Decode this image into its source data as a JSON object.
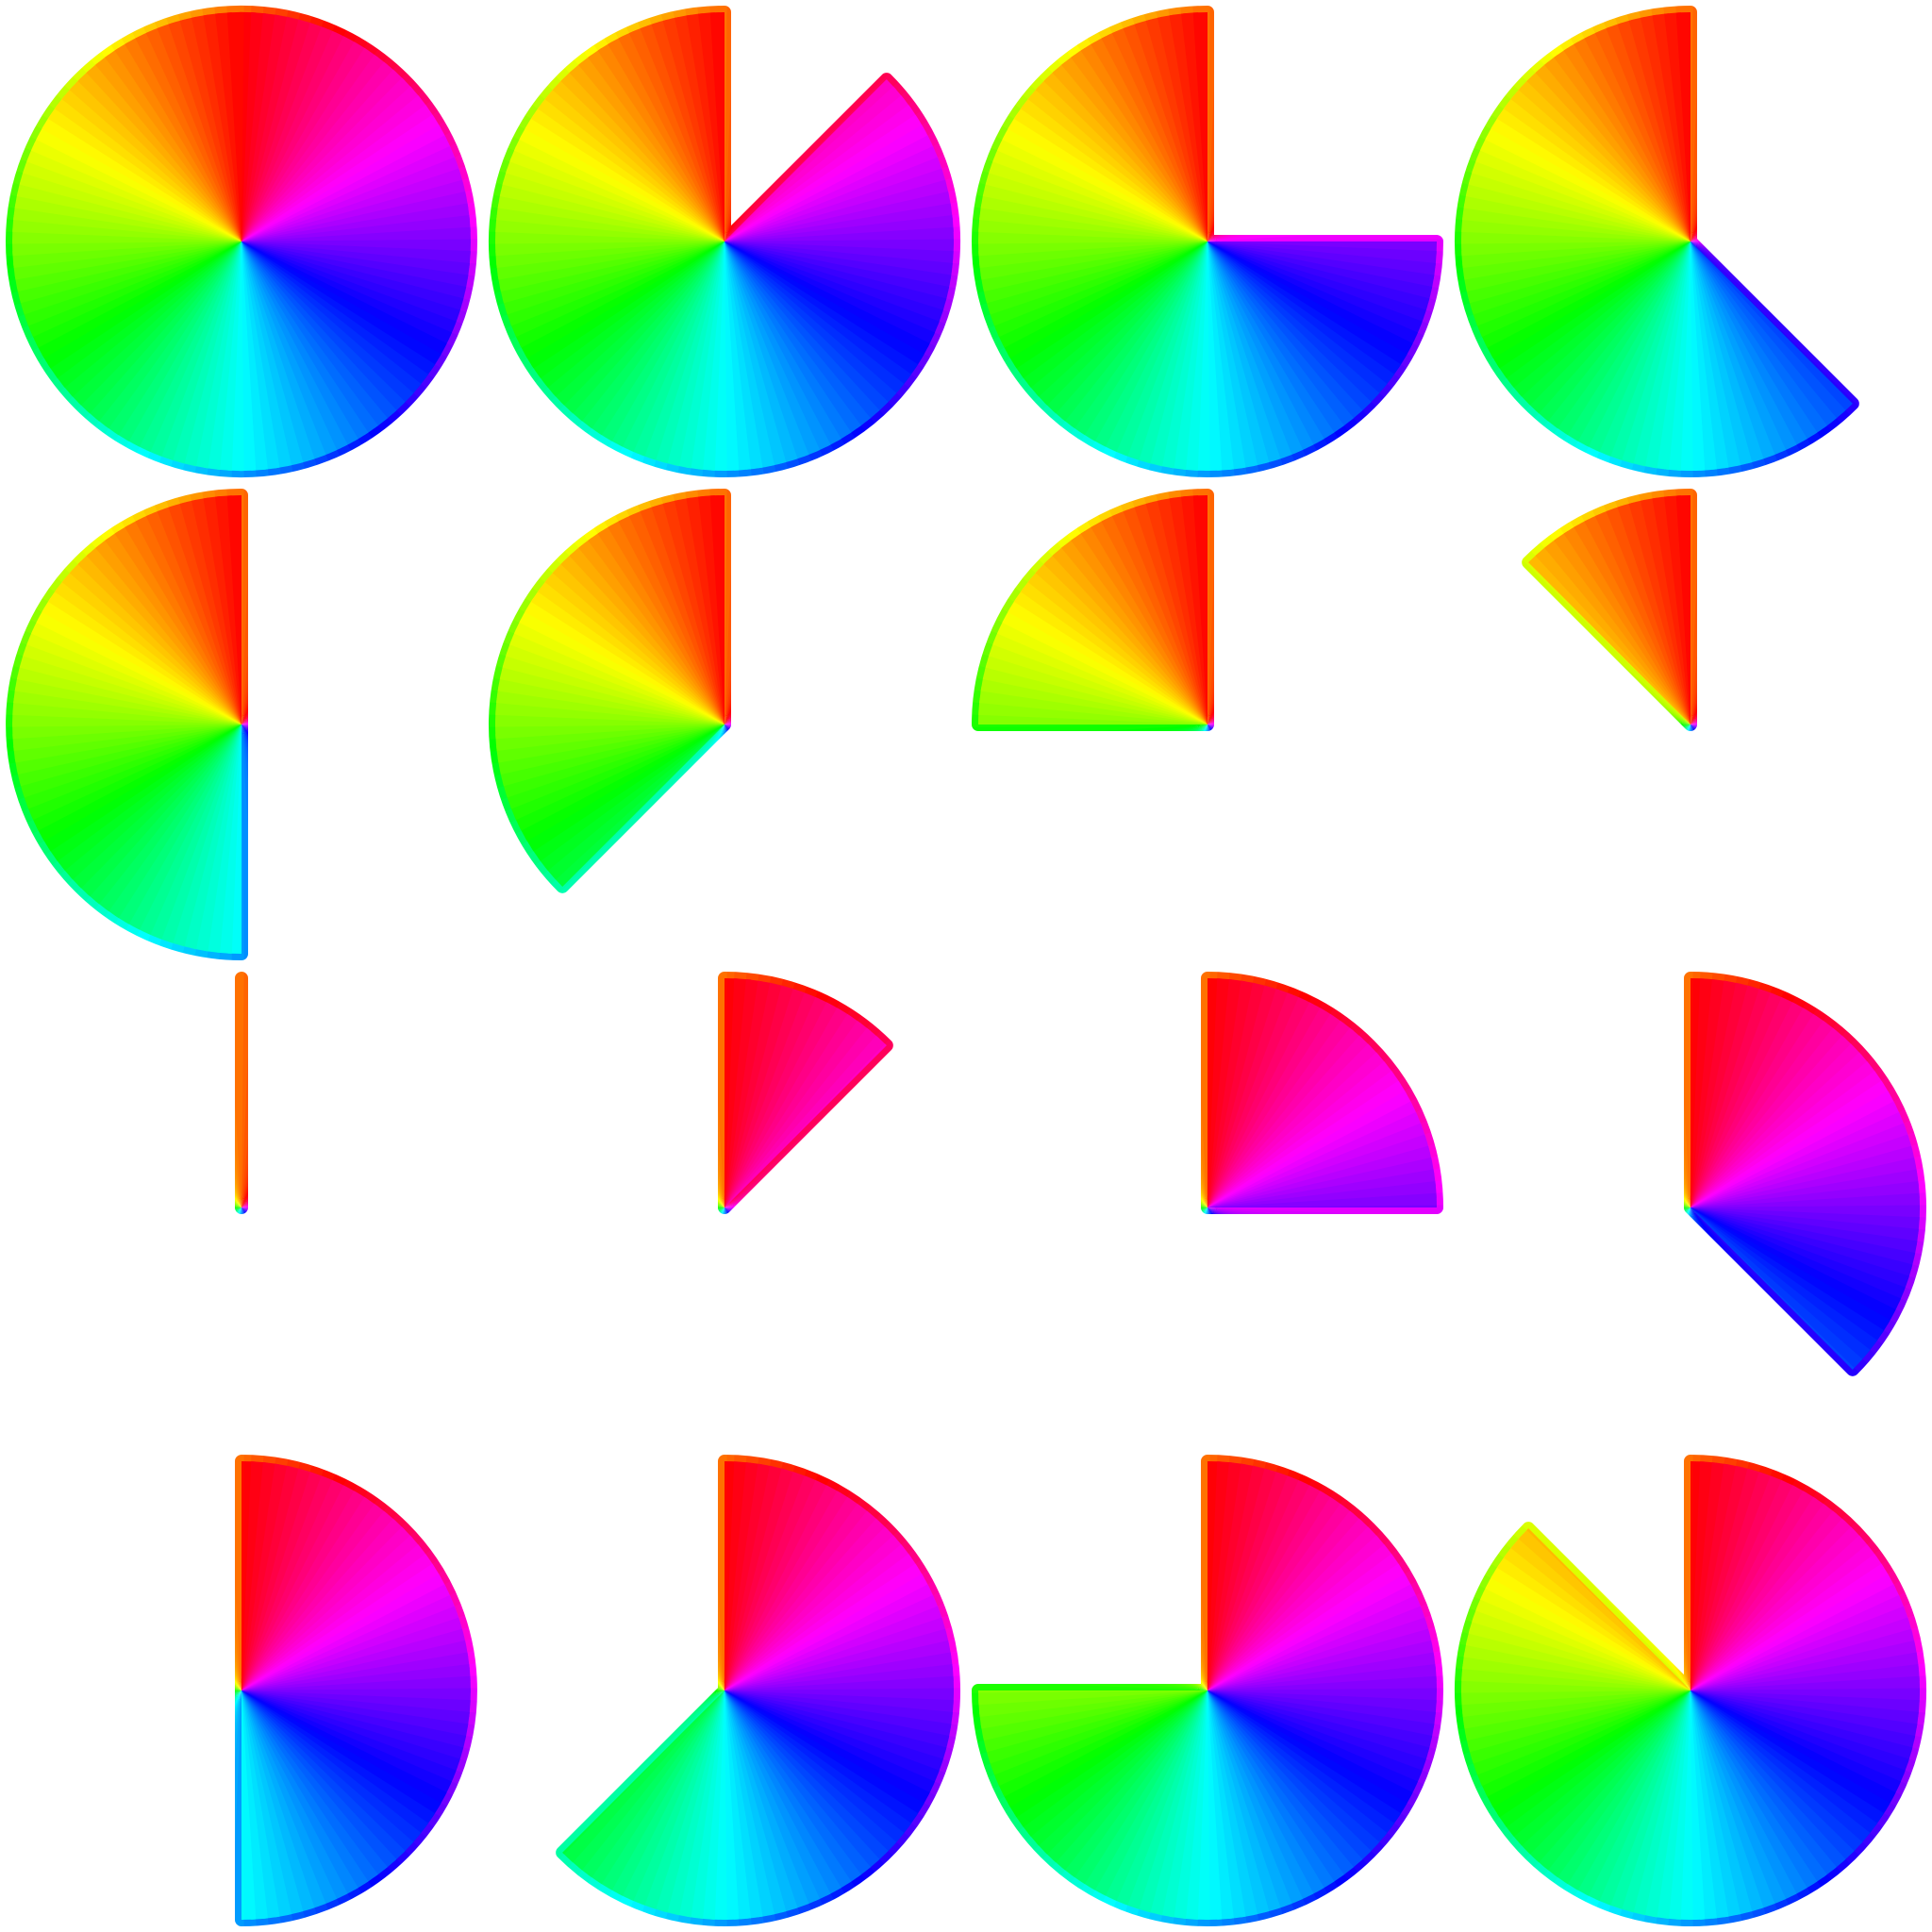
{
  "sectors": [
    {
      "start": 0,
      "end": 360
    },
    {
      "start": 45,
      "end": 360
    },
    {
      "start": 90,
      "end": 360
    },
    {
      "start": 135,
      "end": 360
    },
    {
      "start": 180,
      "end": 360
    },
    {
      "start": 225,
      "end": 360
    },
    {
      "start": 270,
      "end": 360
    },
    {
      "start": 315,
      "end": 360
    },
    {
      "start": 0,
      "end": 0
    },
    {
      "start": 0,
      "end": 45
    },
    {
      "start": 0,
      "end": 90
    },
    {
      "start": 0,
      "end": 135
    },
    {
      "start": 0,
      "end": 180
    },
    {
      "start": 0,
      "end": 225
    },
    {
      "start": 0,
      "end": 270
    },
    {
      "start": 0,
      "end": 315
    }
  ]
}
